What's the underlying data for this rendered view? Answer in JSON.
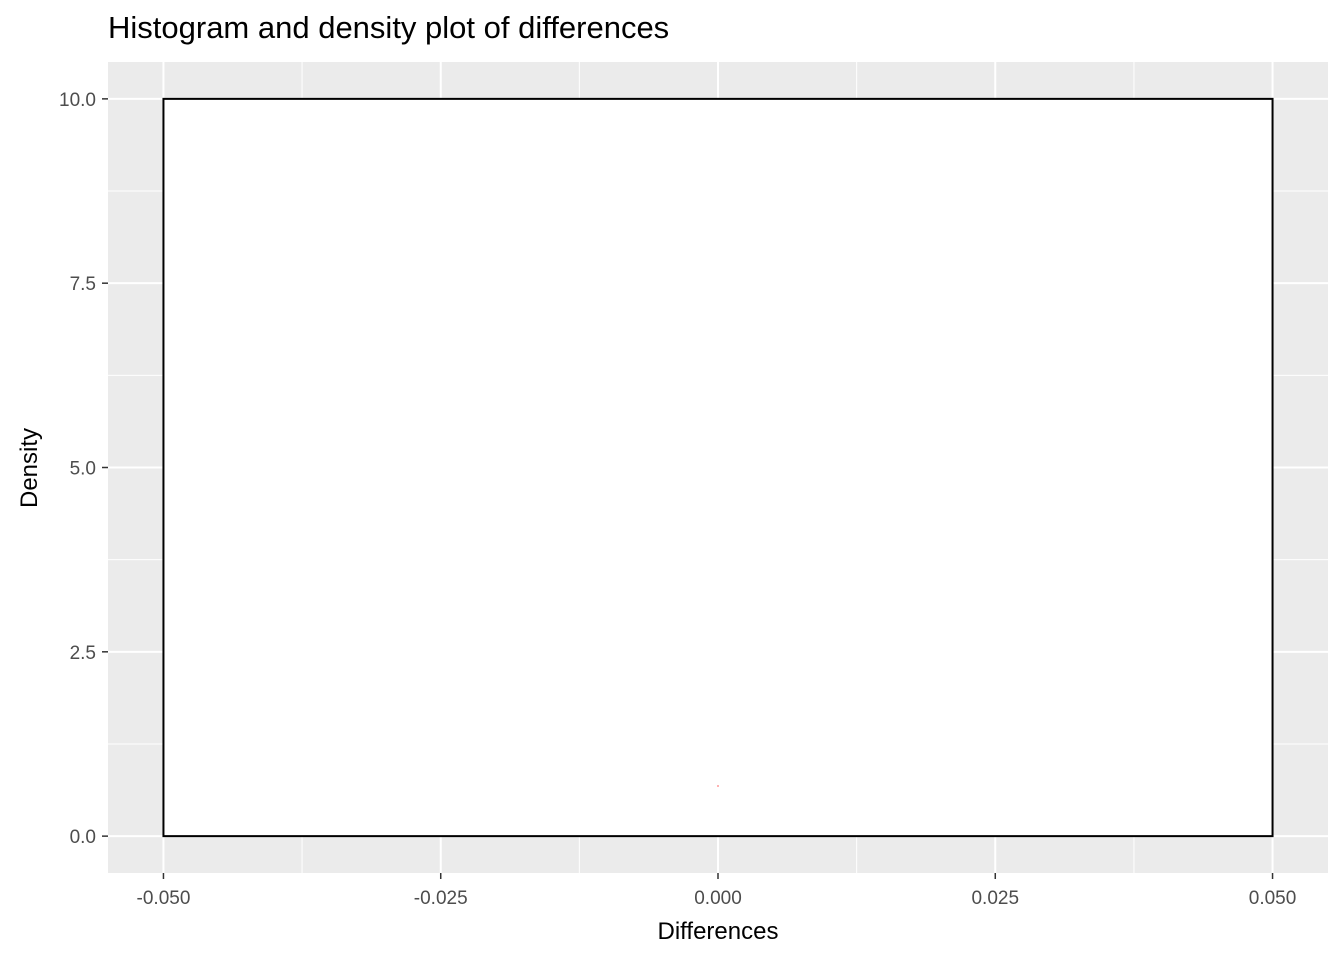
{
  "chart_data": {
    "type": "histogram",
    "title": "Histogram and density plot of differences",
    "xlabel": "Differences",
    "ylabel": "Density",
    "xlim": [
      -0.055,
      0.055
    ],
    "ylim": [
      -0.5,
      10.5
    ],
    "x_ticks": [
      -0.05,
      -0.025,
      0.0,
      0.025,
      0.05
    ],
    "x_tick_labels": [
      "-0.050",
      "-0.025",
      "0.000",
      "0.025",
      "0.050"
    ],
    "y_ticks": [
      0,
      2.5,
      5,
      7.5,
      10
    ],
    "y_tick_labels": [
      "0.0",
      "2.5",
      "5.0",
      "7.5",
      "10.0"
    ],
    "x_minor": [
      -0.0375,
      -0.0125,
      0.0125,
      0.0375
    ],
    "y_minor": [
      1.25,
      3.75,
      6.25,
      8.75
    ],
    "bins": [
      {
        "xmin": -0.05,
        "xmax": 0.05,
        "density": 10.0
      }
    ],
    "density_curve": [
      {
        "x": 0.0,
        "y": 0.68
      }
    ],
    "grid": true,
    "colors": {
      "panel_background": "#ebebeb",
      "grid": "#ffffff",
      "bar_fill": "#ffffff",
      "bar_outline": "#000000",
      "density_line": "#ff0000"
    }
  }
}
